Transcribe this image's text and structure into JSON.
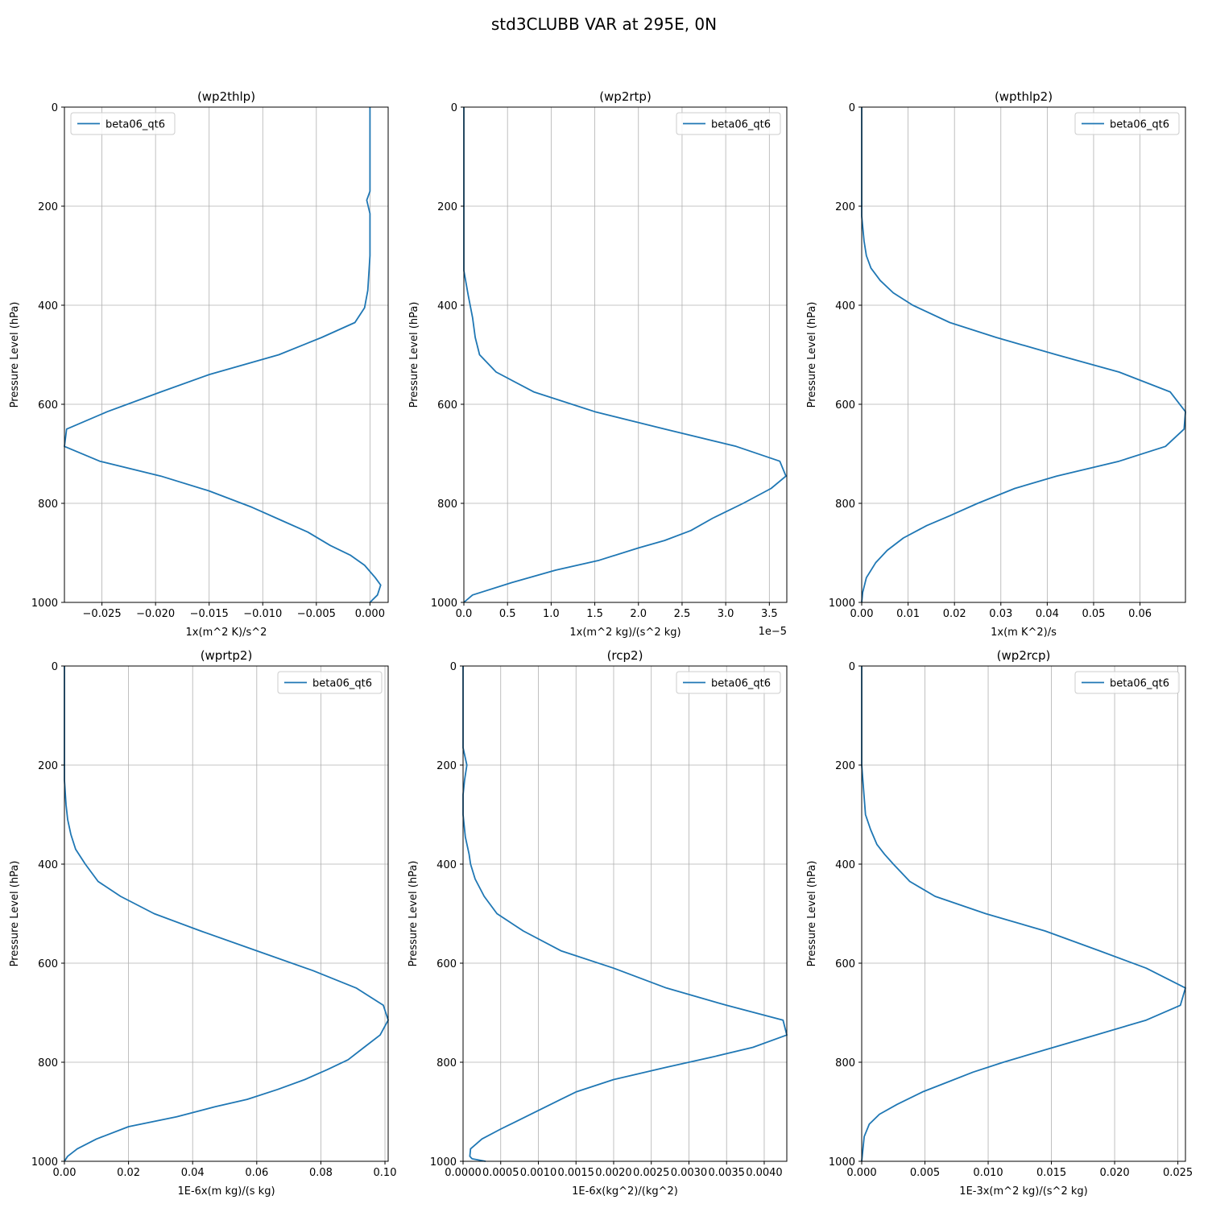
{
  "figure": {
    "title": "std3CLUBB VAR at 295E, 0N"
  },
  "colors": {
    "line": "#1f77b4",
    "grid": "#b0b0b0",
    "axis": "#000000",
    "legend_border": "#cccccc"
  },
  "chart_data": [
    {
      "type": "line",
      "title": "(wp2thlp)",
      "xlabel": "1x(m^2 K)/s^2",
      "ylabel": "Pressure Level (hPa)",
      "xlim": [
        -0.0285,
        0.0017
      ],
      "ylim": [
        1000,
        0
      ],
      "xticks": [
        -0.025,
        -0.02,
        -0.015,
        -0.01,
        -0.005,
        0.0
      ],
      "xtick_labels": [
        "−0.025",
        "−0.020",
        "−0.015",
        "−0.010",
        "−0.005",
        "0.000"
      ],
      "yticks": [
        0,
        200,
        400,
        600,
        800,
        1000
      ],
      "ytick_labels": [
        "0",
        "200",
        "400",
        "600",
        "800",
        "1000"
      ],
      "offset_label": "",
      "legend": {
        "label": "beta06_qt6",
        "loc": "upper left"
      },
      "series": [
        {
          "name": "beta06_qt6",
          "x": [
            0.0,
            0.0,
            0.0,
            0.0,
            -0.0003,
            0.0,
            0.0,
            0.0,
            -0.0002,
            -0.0005,
            -0.0014,
            -0.0045,
            -0.0085,
            -0.015,
            -0.0195,
            -0.0245,
            -0.0283,
            -0.0285,
            -0.0252,
            -0.0195,
            -0.015,
            -0.011,
            -0.0082,
            -0.0058,
            -0.0037,
            -0.0018,
            -0.0005,
            0.0005,
            0.001,
            0.0007,
            0.0
          ],
          "y": [
            0,
            100,
            150,
            170,
            188,
            215,
            250,
            300,
            370,
            405,
            435,
            465,
            500,
            540,
            575,
            615,
            650,
            685,
            715,
            745,
            775,
            808,
            835,
            858,
            885,
            905,
            925,
            950,
            965,
            985,
            1000
          ]
        }
      ]
    },
    {
      "type": "line",
      "title": "(wp2rtp)",
      "xlabel": "1x(m^2 kg)/(s^2 kg)",
      "ylabel": "Pressure Level (hPa)",
      "xlim": [
        0.0,
        3.7
      ],
      "ylim": [
        1000,
        0
      ],
      "xticks": [
        0.0,
        0.5,
        1.0,
        1.5,
        2.0,
        2.5,
        3.0,
        3.5
      ],
      "xtick_labels": [
        "0.0",
        "0.5",
        "1.0",
        "1.5",
        "2.0",
        "2.5",
        "3.0",
        "3.5"
      ],
      "yticks": [
        0,
        200,
        400,
        600,
        800,
        1000
      ],
      "ytick_labels": [
        "0",
        "200",
        "400",
        "600",
        "800",
        "1000"
      ],
      "offset_label": "1e−5",
      "legend": {
        "label": "beta06_qt6",
        "loc": "upper right"
      },
      "series": [
        {
          "name": "beta06_qt6",
          "x": [
            0.0,
            0.0,
            0.0,
            0.0,
            0.0,
            0.0,
            0.05,
            0.1,
            0.13,
            0.18,
            0.37,
            0.8,
            1.5,
            2.3,
            3.12,
            3.62,
            3.69,
            3.52,
            3.2,
            2.85,
            2.6,
            2.3,
            2.0,
            1.55,
            1.05,
            0.55,
            0.1,
            0.0
          ],
          "y": [
            0,
            100,
            180,
            250,
            300,
            330,
            380,
            425,
            465,
            500,
            535,
            575,
            615,
            650,
            685,
            715,
            745,
            770,
            800,
            830,
            855,
            875,
            890,
            915,
            935,
            960,
            985,
            1000
          ]
        }
      ]
    },
    {
      "type": "line",
      "title": "(wpthlp2)",
      "xlabel": "1x(m K^2)/s",
      "ylabel": "Pressure Level (hPa)",
      "xlim": [
        0.0,
        0.0698
      ],
      "ylim": [
        1000,
        0
      ],
      "xticks": [
        0.0,
        0.01,
        0.02,
        0.03,
        0.04,
        0.05,
        0.06
      ],
      "xtick_labels": [
        "0.00",
        "0.01",
        "0.02",
        "0.03",
        "0.04",
        "0.05",
        "0.06"
      ],
      "yticks": [
        0,
        200,
        400,
        600,
        800,
        1000
      ],
      "ytick_labels": [
        "0",
        "200",
        "400",
        "600",
        "800",
        "1000"
      ],
      "offset_label": "",
      "legend": {
        "label": "beta06_qt6",
        "loc": "upper right"
      },
      "series": [
        {
          "name": "beta06_qt6",
          "x": [
            0.0,
            0.0,
            0.0,
            0.0005,
            0.001,
            0.002,
            0.004,
            0.0068,
            0.011,
            0.019,
            0.029,
            0.042,
            0.0555,
            0.0665,
            0.0698,
            0.0695,
            0.0655,
            0.0555,
            0.042,
            0.033,
            0.025,
            0.019,
            0.014,
            0.009,
            0.0055,
            0.003,
            0.001,
            0.0002,
            0.0
          ],
          "y": [
            0,
            100,
            220,
            270,
            300,
            325,
            350,
            375,
            400,
            435,
            465,
            500,
            535,
            575,
            615,
            650,
            685,
            715,
            745,
            770,
            800,
            825,
            845,
            870,
            895,
            920,
            950,
            980,
            1000
          ]
        }
      ]
    },
    {
      "type": "line",
      "title": "(wprtp2)",
      "xlabel": "1E-6x(m kg)/(s kg)",
      "ylabel": "Pressure Level (hPa)",
      "xlim": [
        0.0,
        0.101
      ],
      "ylim": [
        1000,
        0
      ],
      "xticks": [
        0.0,
        0.02,
        0.04,
        0.06,
        0.08,
        0.1
      ],
      "xtick_labels": [
        "0.00",
        "0.02",
        "0.04",
        "0.06",
        "0.08",
        "0.10"
      ],
      "yticks": [
        0,
        200,
        400,
        600,
        800,
        1000
      ],
      "ytick_labels": [
        "0",
        "200",
        "400",
        "600",
        "800",
        "1000"
      ],
      "offset_label": "",
      "legend": {
        "label": "beta06_qt6",
        "loc": "upper right"
      },
      "series": [
        {
          "name": "beta06_qt6",
          "x": [
            0.0,
            0.0,
            0.0,
            0.0005,
            0.001,
            0.002,
            0.0035,
            0.0065,
            0.0105,
            0.0175,
            0.028,
            0.0425,
            0.06,
            0.0775,
            0.091,
            0.0995,
            0.101,
            0.0985,
            0.0935,
            0.0885,
            0.082,
            0.075,
            0.0665,
            0.057,
            0.047,
            0.035,
            0.02,
            0.01,
            0.004,
            0.001,
            0.0
          ],
          "y": [
            0,
            100,
            230,
            280,
            310,
            340,
            370,
            400,
            435,
            465,
            500,
            535,
            575,
            615,
            650,
            685,
            715,
            745,
            770,
            795,
            815,
            835,
            855,
            875,
            890,
            910,
            930,
            955,
            975,
            990,
            1000
          ]
        }
      ]
    },
    {
      "type": "line",
      "title": "(rcp2)",
      "xlabel": "1E-6x(kg^2)/(kg^2)",
      "ylabel": "Pressure Level (hPa)",
      "xlim": [
        0.0,
        0.0043
      ],
      "ylim": [
        1000,
        0
      ],
      "xticks": [
        0.0,
        0.0005,
        0.001,
        0.0015,
        0.002,
        0.0025,
        0.003,
        0.0035,
        0.004
      ],
      "xtick_labels": [
        "0.0000",
        "0.0005",
        "0.0010",
        "0.0015",
        "0.0020",
        "0.0025",
        "0.0030",
        "0.0035",
        "0.0040"
      ],
      "yticks": [
        0,
        200,
        400,
        600,
        800,
        1000
      ],
      "ytick_labels": [
        "0",
        "200",
        "400",
        "600",
        "800",
        "1000"
      ],
      "offset_label": "",
      "legend": {
        "label": "beta06_qt6",
        "loc": "upper right"
      },
      "series": [
        {
          "name": "beta06_qt6",
          "x": [
            0.0,
            0.0,
            5e-05,
            2e-05,
            0.0,
            0.0,
            3e-05,
            8e-05,
            0.0001,
            0.00016,
            0.00028,
            0.00045,
            0.0008,
            0.0013,
            0.002,
            0.0027,
            0.0035,
            0.00425,
            0.0043,
            0.00385,
            0.0033,
            0.0027,
            0.002,
            0.0015,
            0.0013,
            0.0009,
            0.0005,
            0.00025,
            0.0001,
            9e-05,
            0.00012,
            0.0003
          ],
          "y": [
            0,
            165,
            200,
            230,
            260,
            300,
            345,
            380,
            400,
            430,
            465,
            500,
            535,
            575,
            610,
            650,
            685,
            715,
            745,
            770,
            790,
            810,
            835,
            860,
            875,
            905,
            935,
            955,
            975,
            990,
            995,
            1000
          ]
        }
      ]
    },
    {
      "type": "line",
      "title": "(wp2rcp)",
      "xlabel": "1E-3x(m^2 kg)/(s^2 kg)",
      "ylabel": "Pressure Level (hPa)",
      "xlim": [
        0.0,
        0.0256
      ],
      "ylim": [
        1000,
        0
      ],
      "xticks": [
        0.0,
        0.005,
        0.01,
        0.015,
        0.02,
        0.025
      ],
      "xtick_labels": [
        "0.000",
        "0.005",
        "0.010",
        "0.015",
        "0.020",
        "0.025"
      ],
      "yticks": [
        0,
        200,
        400,
        600,
        800,
        1000
      ],
      "ytick_labels": [
        "0",
        "200",
        "400",
        "600",
        "800",
        "1000"
      ],
      "offset_label": "",
      "legend": {
        "label": "beta06_qt6",
        "loc": "upper right"
      },
      "series": [
        {
          "name": "beta06_qt6",
          "x": [
            0.0,
            0.0,
            0.0,
            0.0003,
            0.0007,
            0.0012,
            0.0018,
            0.0025,
            0.0038,
            0.0058,
            0.0098,
            0.0145,
            0.0188,
            0.0225,
            0.0256,
            0.0252,
            0.0225,
            0.0185,
            0.0145,
            0.0112,
            0.0088,
            0.0068,
            0.0048,
            0.0028,
            0.0014,
            0.0006,
            0.0002,
            0.0
          ],
          "y": [
            0,
            100,
            200,
            300,
            330,
            360,
            380,
            400,
            435,
            465,
            500,
            535,
            575,
            610,
            650,
            685,
            715,
            745,
            775,
            800,
            820,
            840,
            860,
            885,
            905,
            925,
            950,
            1000
          ]
        }
      ]
    }
  ]
}
